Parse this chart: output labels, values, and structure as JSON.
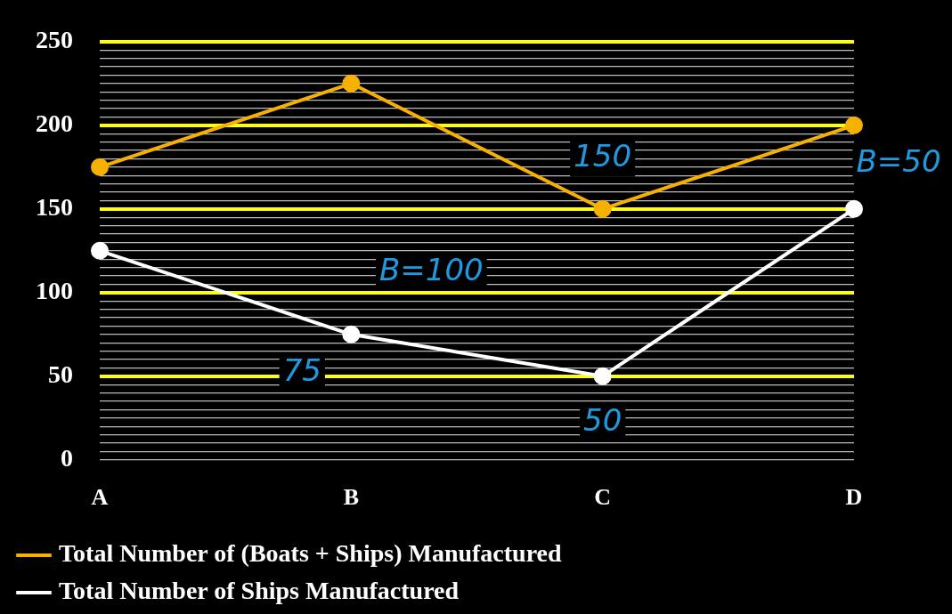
{
  "chart_data": {
    "type": "line",
    "categories": [
      "A",
      "B",
      "C",
      "D"
    ],
    "series": [
      {
        "name": "Total Number of (Boats + Ships) Manufactured",
        "color": "#f5b000",
        "values": [
          175,
          225,
          150,
          200
        ]
      },
      {
        "name": "Total Number of Ships Manufactured",
        "color": "#ffffff",
        "values": [
          125,
          75,
          50,
          150
        ]
      }
    ],
    "ylim": [
      0,
      250
    ],
    "yticks": [
      0,
      {
        "value": 5,
        "label": null
      },
      {
        "value": 10,
        "label": null
      },
      {
        "value": 15,
        "label": null
      },
      {
        "value": 20,
        "label": null
      },
      {
        "value": 25,
        "label": null
      },
      {
        "value": 30,
        "label": null
      },
      {
        "value": 35,
        "label": null
      },
      {
        "value": 40,
        "label": null
      },
      {
        "value": 45,
        "label": null
      },
      50,
      {
        "value": 55,
        "label": null
      },
      {
        "value": 60,
        "label": null
      },
      {
        "value": 65,
        "label": null
      },
      {
        "value": 70,
        "label": null
      },
      {
        "value": 75,
        "label": null
      },
      {
        "value": 80,
        "label": null
      },
      {
        "value": 85,
        "label": null
      },
      {
        "value": 90,
        "label": null
      },
      {
        "value": 95,
        "label": null
      },
      100,
      {
        "value": 105,
        "label": null
      },
      {
        "value": 110,
        "label": null
      },
      {
        "value": 115,
        "label": null
      },
      {
        "value": 120,
        "label": null
      },
      {
        "value": 125,
        "label": null
      },
      {
        "value": 130,
        "label": null
      },
      {
        "value": 135,
        "label": null
      },
      {
        "value": 140,
        "label": null
      },
      {
        "value": 145,
        "label": null
      },
      150,
      {
        "value": 155,
        "label": null
      },
      {
        "value": 160,
        "label": null
      },
      {
        "value": 165,
        "label": null
      },
      {
        "value": 170,
        "label": null
      },
      {
        "value": 175,
        "label": null
      },
      {
        "value": 180,
        "label": null
      },
      {
        "value": 185,
        "label": null
      },
      {
        "value": 190,
        "label": null
      },
      {
        "value": 195,
        "label": null
      },
      200,
      {
        "value": 205,
        "label": null
      },
      {
        "value": 210,
        "label": null
      },
      {
        "value": 215,
        "label": null
      },
      {
        "value": 220,
        "label": null
      },
      {
        "value": 225,
        "label": null
      },
      {
        "value": 230,
        "label": null
      },
      {
        "value": 235,
        "label": null
      },
      {
        "value": 240,
        "label": null
      },
      {
        "value": 245,
        "label": null
      },
      250
    ],
    "grid": "y",
    "legend": "bottom",
    "marker": "circle",
    "line_style": "solid",
    "annotations": [
      "75",
      "B=100",
      "150",
      "50",
      "B=50"
    ]
  }
}
